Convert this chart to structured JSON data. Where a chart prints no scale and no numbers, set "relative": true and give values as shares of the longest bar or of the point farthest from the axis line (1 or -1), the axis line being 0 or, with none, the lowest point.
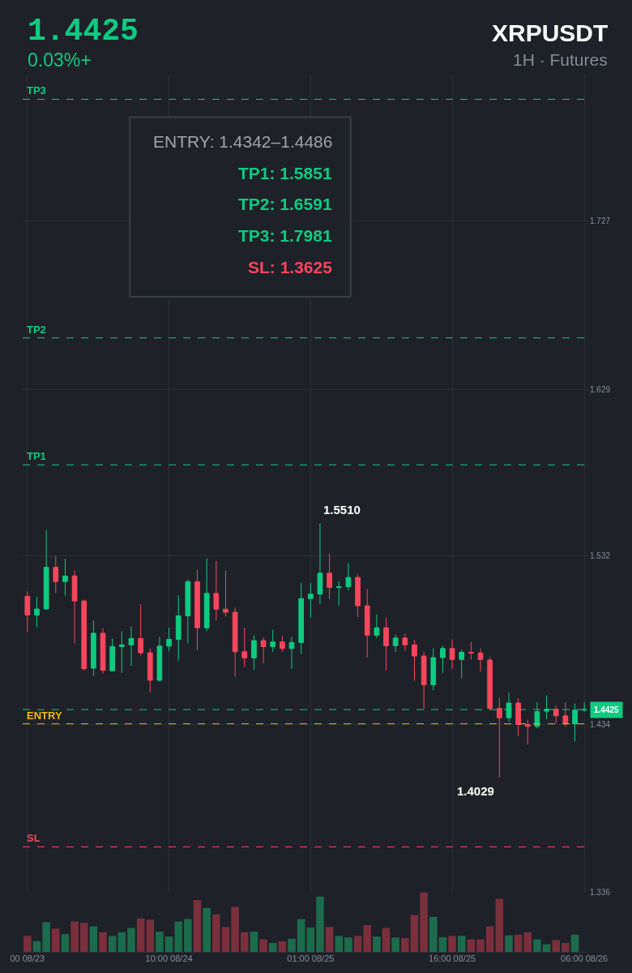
{
  "chart_data": [
    {
      "type": "candlestick",
      "title": "XRPUSDT",
      "subtitle": "1H · Futures",
      "annotations": [
        "1.4425",
        "0.03%+",
        "ENTRY: 1.4342–1.4486",
        "TP1: 1.5851",
        "TP2: 1.6591",
        "TP3: 1.7981",
        "SL: 1.3625",
        "1.5510",
        "1.4029",
        "1.4425"
      ],
      "categories": [
        "00 08/23",
        null,
        null,
        null,
        null,
        null,
        null,
        null,
        null,
        null,
        null,
        null,
        null,
        null,
        null,
        "10:00 08/24",
        null,
        null,
        null,
        null,
        null,
        null,
        null,
        null,
        null,
        null,
        null,
        null,
        null,
        null,
        "01:00 08/25",
        null,
        null,
        null,
        null,
        null,
        null,
        null,
        null,
        null,
        null,
        null,
        null,
        null,
        null,
        "16:00 08/25",
        null,
        null,
        null,
        null,
        null,
        null,
        null,
        null,
        null,
        null,
        null,
        null,
        null,
        "06:00 08/26"
      ],
      "ohlc": [
        [
          1.5085,
          1.5113,
          1.4877,
          1.4976
        ],
        [
          1.4976,
          1.5082,
          1.4905,
          1.5011
        ],
        [
          1.5011,
          1.5469,
          1.5011,
          1.5254
        ],
        [
          1.5254,
          1.532,
          1.5105,
          1.5171
        ],
        [
          1.5171,
          1.5304,
          1.509,
          1.5203
        ],
        [
          1.5204,
          1.5235,
          1.4812,
          1.5058
        ],
        [
          1.5058,
          1.5065,
          1.4654,
          1.4663
        ],
        [
          1.4667,
          1.4944,
          1.4623,
          1.487
        ],
        [
          1.487,
          1.49,
          1.4635,
          1.4654
        ],
        [
          1.4651,
          1.4839,
          1.4651,
          1.4792
        ],
        [
          1.4792,
          1.4881,
          1.464,
          1.4802
        ],
        [
          1.4802,
          1.491,
          1.4679,
          1.4839
        ],
        [
          1.4839,
          1.5038,
          1.474,
          1.4756
        ],
        [
          1.4756,
          1.4781,
          1.4526,
          1.4596
        ],
        [
          1.4596,
          1.4849,
          1.4588,
          1.4795
        ],
        [
          1.4795,
          1.4902,
          1.4765,
          1.4834
        ],
        [
          1.4834,
          1.509,
          1.471,
          1.4971
        ],
        [
          1.4971,
          1.5184,
          1.4811,
          1.517
        ],
        [
          1.517,
          1.524,
          1.4772,
          1.4902
        ],
        [
          1.4902,
          1.5306,
          1.4881,
          1.5102
        ],
        [
          1.5102,
          1.5293,
          1.4944,
          1.501
        ],
        [
          1.501,
          1.5235,
          1.4969,
          1.4992
        ],
        [
          1.4992,
          1.5018,
          1.4616,
          1.4762
        ],
        [
          1.4762,
          1.4902,
          1.4673,
          1.4726
        ],
        [
          1.4726,
          1.4858,
          1.4656,
          1.4827
        ],
        [
          1.4827,
          1.4844,
          1.4695,
          1.4792
        ],
        [
          1.4792,
          1.4891,
          1.4761,
          1.4819
        ],
        [
          1.4819,
          1.4853,
          1.4764,
          1.4781
        ],
        [
          1.4781,
          1.4849,
          1.4663,
          1.4816
        ],
        [
          1.4816,
          1.5163,
          1.4748,
          1.5072
        ],
        [
          1.5072,
          1.5163,
          1.4961,
          1.5098
        ],
        [
          1.5098,
          1.551,
          1.5041,
          1.522
        ],
        [
          1.522,
          1.5333,
          1.5068,
          1.5137
        ],
        [
          1.5137,
          1.5173,
          1.5032,
          1.5141
        ],
        [
          1.5141,
          1.5278,
          1.5119,
          1.5195
        ],
        [
          1.5195,
          1.5212,
          1.4964,
          1.503
        ],
        [
          1.503,
          1.5127,
          1.4729,
          1.4858
        ],
        [
          1.4858,
          1.498,
          1.4842,
          1.4902
        ],
        [
          1.4902,
          1.4961,
          1.4654,
          1.4797
        ],
        [
          1.4797,
          1.4863,
          1.4761,
          1.4842
        ],
        [
          1.4842,
          1.4867,
          1.4767,
          1.4802
        ],
        [
          1.4802,
          1.483,
          1.4592,
          1.4737
        ],
        [
          1.4737,
          1.4761,
          1.4428,
          1.4569
        ],
        [
          1.4569,
          1.4783,
          1.4537,
          1.4728
        ],
        [
          1.4728,
          1.4797,
          1.4639,
          1.4781
        ],
        [
          1.4781,
          1.4833,
          1.4663,
          1.4717
        ],
        [
          1.4717,
          1.4773,
          1.4607,
          1.4759
        ],
        [
          1.4759,
          1.482,
          1.4717,
          1.4755
        ],
        [
          1.4755,
          1.478,
          1.4645,
          1.4717
        ],
        [
          1.4714,
          1.4733,
          1.4419,
          1.4432
        ],
        [
          1.4432,
          1.4494,
          1.4029,
          1.4377
        ],
        [
          1.4377,
          1.4524,
          1.4353,
          1.4463
        ],
        [
          1.4463,
          1.4491,
          1.4272,
          1.4338
        ],
        [
          1.4338,
          1.4366,
          1.4222,
          1.4327
        ],
        [
          1.4327,
          1.4469,
          1.4316,
          1.4413
        ],
        [
          1.4416,
          1.4507,
          1.4369,
          1.4427
        ],
        [
          1.4427,
          1.445,
          1.4344,
          1.4389
        ],
        [
          1.4389,
          1.4468,
          1.4325,
          1.4342
        ],
        [
          1.4342,
          1.446,
          1.424,
          1.4422
        ],
        [
          1.4422,
          1.4466,
          1.4412,
          1.4425
        ]
      ],
      "colors": [
        "#f6465d",
        "#0ecb81",
        "#0ecb81",
        "#f6465d",
        "#0ecb81",
        "#f6465d",
        "#f6465d",
        "#0ecb81",
        "#f6465d",
        "#0ecb81",
        "#0ecb81",
        "#0ecb81",
        "#f6465d",
        "#f6465d",
        "#0ecb81",
        "#0ecb81",
        "#0ecb81",
        "#0ecb81",
        "#f6465d",
        "#0ecb81",
        "#f6465d",
        "#f6465d",
        "#f6465d",
        "#f6465d",
        "#0ecb81",
        "#f6465d",
        "#0ecb81",
        "#f6465d",
        "#0ecb81",
        "#0ecb81",
        "#0ecb81",
        "#0ecb81",
        "#f6465d",
        "#0ecb81",
        "#0ecb81",
        "#f6465d",
        "#f6465d",
        "#0ecb81",
        "#f6465d",
        "#0ecb81",
        "#f6465d",
        "#f6465d",
        "#f6465d",
        "#0ecb81",
        "#0ecb81",
        "#f6465d",
        "#0ecb81",
        "#f6465d",
        "#f6465d",
        "#f6465d",
        "#f6465d",
        "#0ecb81",
        "#f6465d",
        "#f6465d",
        "#0ecb81",
        "#0ecb81",
        "#f6465d",
        "#f6465d",
        "#0ecb81",
        "#0ecb81"
      ],
      "ylim": [
        1.336,
        1.8125
      ],
      "yticks": [
        1.336,
        1.434,
        1.532,
        1.629,
        1.727
      ],
      "grid": true,
      "ref_lines": [
        {
          "axis": "y",
          "value": 1.7981,
          "label": "TP3",
          "color": "#0ecb81",
          "line_style": "dashed"
        },
        {
          "axis": "y",
          "value": 1.6591,
          "label": "TP2",
          "color": "#0ecb81",
          "line_style": "dashed"
        },
        {
          "axis": "y",
          "value": 1.5851,
          "label": "TP1",
          "color": "#0ecb81",
          "line_style": "dashed"
        },
        {
          "axis": "y",
          "value": 1.4425,
          "color": "#0ecb81",
          "line_style": "dashed"
        },
        {
          "axis": "y",
          "value": 1.4342,
          "label": "ENTRY",
          "color": "#f0b90b",
          "line_style": "dashed"
        },
        {
          "axis": "y",
          "value": 1.3625,
          "label": "SL",
          "color": "#f6465d",
          "line_style": "dashed"
        }
      ]
    },
    {
      "type": "bar",
      "categories": [
        null,
        null,
        null,
        null,
        null,
        null,
        null,
        null,
        null,
        null,
        null,
        null,
        null,
        null,
        null,
        null,
        null,
        null,
        null,
        null,
        null,
        null,
        null,
        null,
        null,
        null,
        null,
        null,
        null,
        null,
        null,
        null,
        null,
        null,
        null,
        null,
        null,
        null,
        null,
        null,
        null,
        null,
        null,
        null,
        null,
        null,
        null,
        null,
        null,
        null,
        null,
        null,
        null,
        null,
        null,
        null,
        null,
        null,
        null,
        null
      ],
      "values": [
        0.27,
        0.18,
        0.5,
        0.39,
        0.3,
        0.51,
        0.49,
        0.43,
        0.33,
        0.27,
        0.33,
        0.4,
        0.56,
        0.54,
        0.34,
        0.26,
        0.51,
        0.55,
        0.87,
        0.74,
        0.63,
        0.42,
        0.76,
        0.33,
        0.34,
        0.21,
        0.15,
        0.18,
        0.22,
        0.55,
        0.41,
        0.93,
        0.42,
        0.27,
        0.24,
        0.27,
        0.45,
        0.26,
        0.4,
        0.24,
        0.23,
        0.62,
        1,
        0.59,
        0.25,
        0.27,
        0.27,
        0.21,
        0.21,
        0.43,
        0.89,
        0.28,
        0.29,
        0.33,
        0.21,
        0.13,
        0.2,
        0.15,
        0.29,
        null
      ],
      "colors": [
        "#7a2f3c",
        "#1c6b4c",
        "#1c6b4c",
        "#7a2f3c",
        "#1c6b4c",
        "#7a2f3c",
        "#7a2f3c",
        "#1c6b4c",
        "#7a2f3c",
        "#1c6b4c",
        "#1c6b4c",
        "#1c6b4c",
        "#7a2f3c",
        "#7a2f3c",
        "#1c6b4c",
        "#1c6b4c",
        "#1c6b4c",
        "#1c6b4c",
        "#7a2f3c",
        "#1c6b4c",
        "#7a2f3c",
        "#7a2f3c",
        "#7a2f3c",
        "#7a2f3c",
        "#1c6b4c",
        "#7a2f3c",
        "#1c6b4c",
        "#7a2f3c",
        "#1c6b4c",
        "#1c6b4c",
        "#1c6b4c",
        "#1c6b4c",
        "#7a2f3c",
        "#1c6b4c",
        "#1c6b4c",
        "#7a2f3c",
        "#7a2f3c",
        "#1c6b4c",
        "#7a2f3c",
        "#1c6b4c",
        "#7a2f3c",
        "#7a2f3c",
        "#7a2f3c",
        "#1c6b4c",
        "#1c6b4c",
        "#7a2f3c",
        "#1c6b4c",
        "#7a2f3c",
        "#7a2f3c",
        "#7a2f3c",
        "#7a2f3c",
        "#1c6b4c",
        "#7a2f3c",
        "#7a2f3c",
        "#1c6b4c",
        "#1c6b4c",
        "#7a2f3c",
        "#7a2f3c",
        "#1c6b4c",
        "#1c6b4c"
      ],
      "relative": true
    }
  ]
}
